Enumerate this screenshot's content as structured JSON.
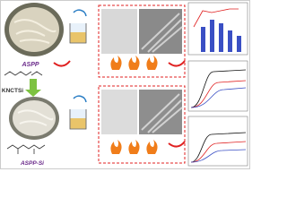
{
  "labels": {
    "top_sample": "ASPP",
    "reagent": "KNCTSi",
    "bottom_sample": "ASPP-Si"
  }
}
